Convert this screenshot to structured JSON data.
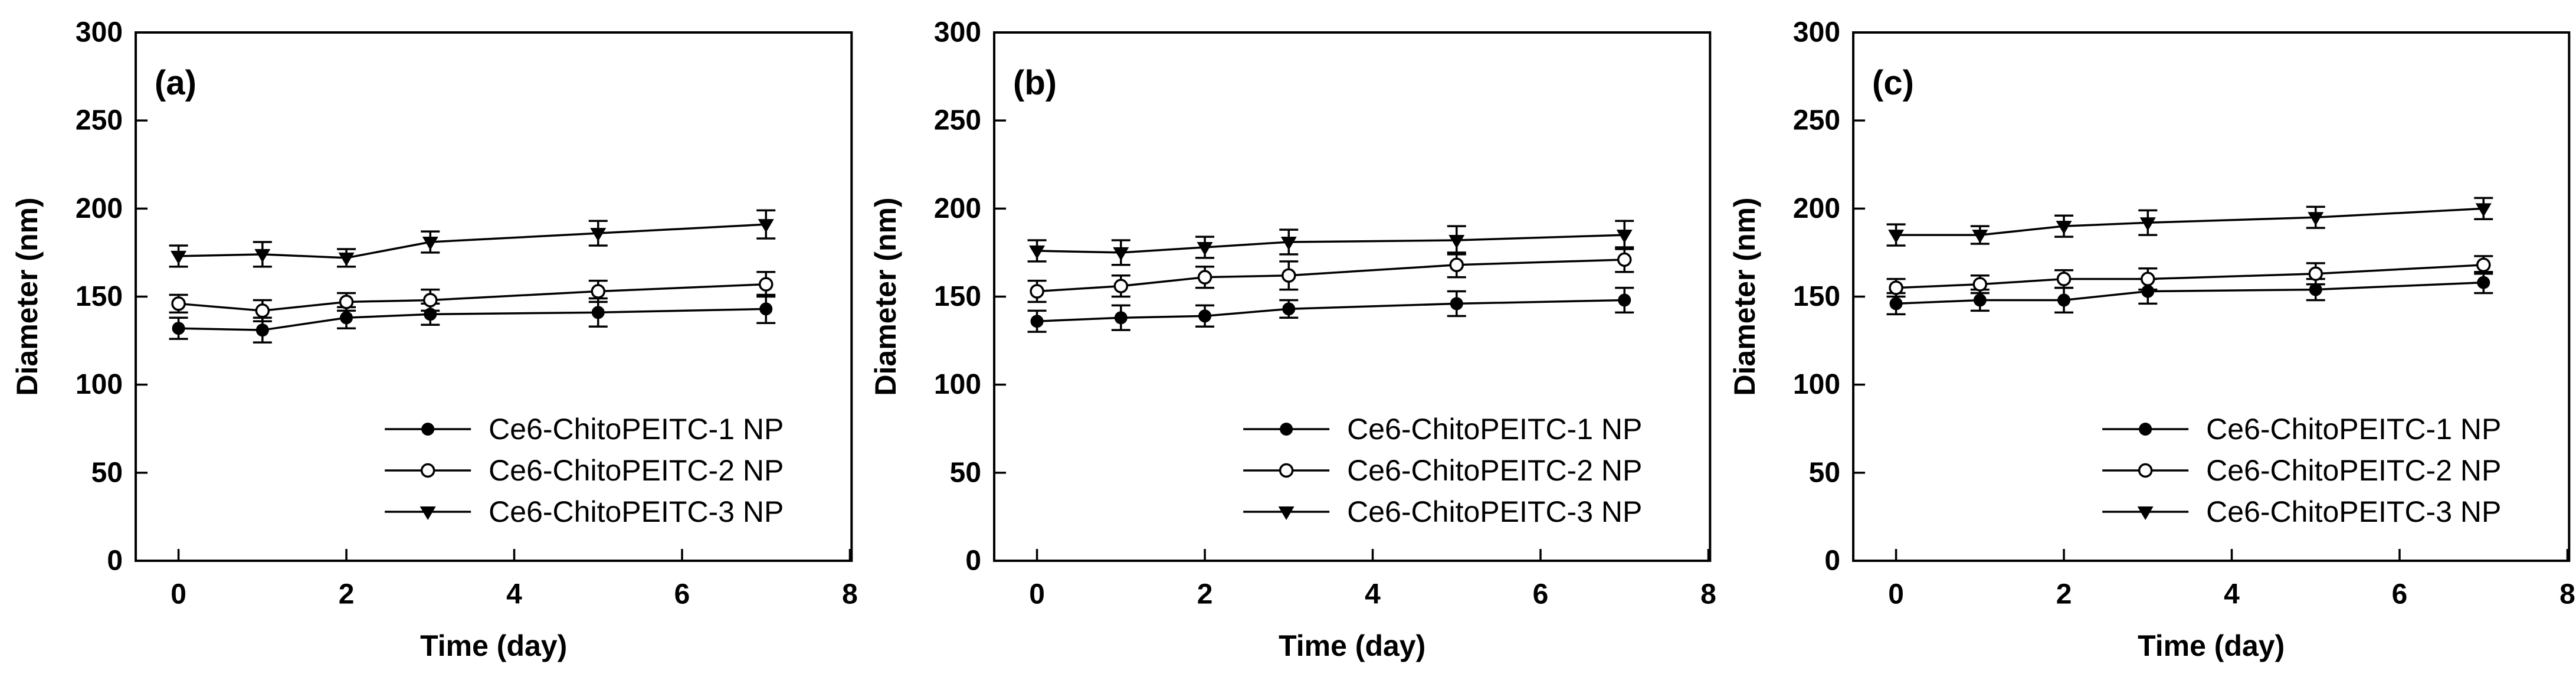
{
  "figure": {
    "background": "#ffffff",
    "foreground": "#000000",
    "description": "Particle size stability of Ce6-ChitoPEITC nanoparticles over 7 days, three panels"
  },
  "axes": {
    "xlabel": "Time (day)",
    "ylabel": "Diameter (nm)"
  },
  "legend": [
    {
      "label": "Ce6-ChitoPEITC-1 NP",
      "marker": "filled-circle"
    },
    {
      "label": "Ce6-ChitoPEITC-2 NP",
      "marker": "open-circle"
    },
    {
      "label": "Ce6-ChitoPEITC-3 NP",
      "marker": "filled-triangle-down"
    }
  ],
  "chart_data": [
    {
      "type": "line",
      "panel_label": "(a)",
      "xlabel": "Time (day)",
      "ylabel": "Diameter (nm)",
      "x": [
        0,
        1,
        2,
        3,
        5,
        7
      ],
      "xticks": [
        0,
        2,
        4,
        6,
        8
      ],
      "yticks": [
        0,
        50,
        100,
        150,
        200,
        250,
        300
      ],
      "xlim": [
        -0.51,
        8.02
      ],
      "ylim": [
        0,
        300
      ],
      "grid": false,
      "legend_position": "lower right",
      "series": [
        {
          "name": "Ce6-ChitoPEITC-1 NP",
          "marker": "filled-circle",
          "values": [
            132,
            131,
            138,
            140,
            141,
            143
          ],
          "errors": [
            6,
            7,
            6,
            6,
            8,
            8
          ]
        },
        {
          "name": "Ce6-ChitoPEITC-2 NP",
          "marker": "open-circle",
          "values": [
            146,
            142,
            147,
            148,
            153,
            157
          ],
          "errors": [
            5,
            6,
            5,
            6,
            6,
            7
          ]
        },
        {
          "name": "Ce6-ChitoPEITC-3 NP",
          "marker": "filled-triangle-down",
          "values": [
            173,
            174,
            172,
            181,
            186,
            191
          ],
          "errors": [
            6,
            7,
            5,
            6,
            7,
            8
          ]
        }
      ]
    },
    {
      "type": "line",
      "panel_label": "(b)",
      "xlabel": "Time (day)",
      "ylabel": "Diameter (nm)",
      "x": [
        0,
        1,
        2,
        3,
        5,
        7
      ],
      "xticks": [
        0,
        2,
        4,
        6,
        8
      ],
      "yticks": [
        0,
        50,
        100,
        150,
        200,
        250,
        300
      ],
      "xlim": [
        -0.51,
        8.02
      ],
      "ylim": [
        0,
        300
      ],
      "grid": false,
      "legend_position": "lower right",
      "series": [
        {
          "name": "Ce6-ChitoPEITC-1 NP",
          "marker": "filled-circle",
          "values": [
            136,
            138,
            139,
            143,
            146,
            148
          ],
          "errors": [
            6,
            7,
            6,
            5,
            7,
            7
          ]
        },
        {
          "name": "Ce6-ChitoPEITC-2 NP",
          "marker": "open-circle",
          "values": [
            153,
            156,
            161,
            162,
            168,
            171
          ],
          "errors": [
            6,
            6,
            6,
            8,
            7,
            7
          ]
        },
        {
          "name": "Ce6-ChitoPEITC-3 NP",
          "marker": "filled-triangle-down",
          "values": [
            176,
            175,
            178,
            181,
            182,
            185
          ],
          "errors": [
            6,
            7,
            6,
            7,
            8,
            8
          ]
        }
      ]
    },
    {
      "type": "line",
      "panel_label": "(c)",
      "xlabel": "Time (day)",
      "ylabel": "Diameter (nm)",
      "x": [
        0,
        1,
        2,
        3,
        5,
        7
      ],
      "xticks": [
        0,
        2,
        4,
        6,
        8
      ],
      "yticks": [
        0,
        50,
        100,
        150,
        200,
        250,
        300
      ],
      "xlim": [
        -0.51,
        8.02
      ],
      "ylim": [
        0,
        300
      ],
      "grid": false,
      "legend_position": "lower right",
      "series": [
        {
          "name": "Ce6-ChitoPEITC-1 NP",
          "marker": "filled-circle",
          "values": [
            146,
            148,
            148,
            153,
            154,
            158
          ],
          "errors": [
            6,
            6,
            7,
            7,
            6,
            6
          ]
        },
        {
          "name": "Ce6-ChitoPEITC-2 NP",
          "marker": "open-circle",
          "values": [
            155,
            157,
            160,
            160,
            163,
            168
          ],
          "errors": [
            5,
            5,
            5,
            6,
            6,
            5
          ]
        },
        {
          "name": "Ce6-ChitoPEITC-3 NP",
          "marker": "filled-triangle-down",
          "values": [
            185,
            185,
            190,
            192,
            195,
            200
          ],
          "errors": [
            6,
            5,
            6,
            7,
            6,
            6
          ]
        }
      ]
    }
  ]
}
